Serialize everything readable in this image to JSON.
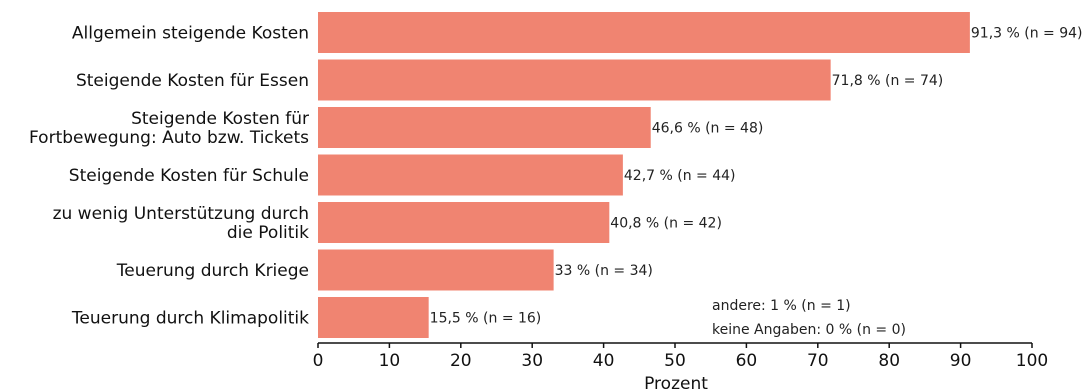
{
  "chart_data": {
    "type": "bar",
    "orientation": "horizontal",
    "categories": [
      [
        "Allgemein steigende Kosten"
      ],
      [
        "Steigende Kosten für Essen"
      ],
      [
        "Steigende Kosten für",
        "Fortbewegung: Auto bzw. Tickets"
      ],
      [
        "Steigende Kosten für Schule"
      ],
      [
        "zu wenig Unterstützung durch",
        "die Politik"
      ],
      [
        "Teuerung durch Kriege"
      ],
      [
        "Teuerung durch Klimapolitik"
      ]
    ],
    "values": [
      91.3,
      71.8,
      46.6,
      42.7,
      40.8,
      33,
      15.5
    ],
    "data_labels": [
      "91,3 % (n = 94)",
      "71,8 % (n = 74)",
      "46,6 % (n = 48)",
      "42,7 % (n = 44)",
      "40,8 % (n = 42)",
      "33 % (n = 34)",
      "15,5 % (n = 16)"
    ],
    "xlabel": "Prozent",
    "ylabel": "",
    "title": "",
    "xlim": [
      0,
      100
    ],
    "xticks": [
      0,
      10,
      20,
      30,
      40,
      50,
      60,
      70,
      80,
      90,
      100
    ],
    "bar_color": "#f08471",
    "grid": false,
    "notes": [
      "andere: 1 % (n = 1)",
      "keine Angaben: 0 % (n = 0)"
    ]
  }
}
